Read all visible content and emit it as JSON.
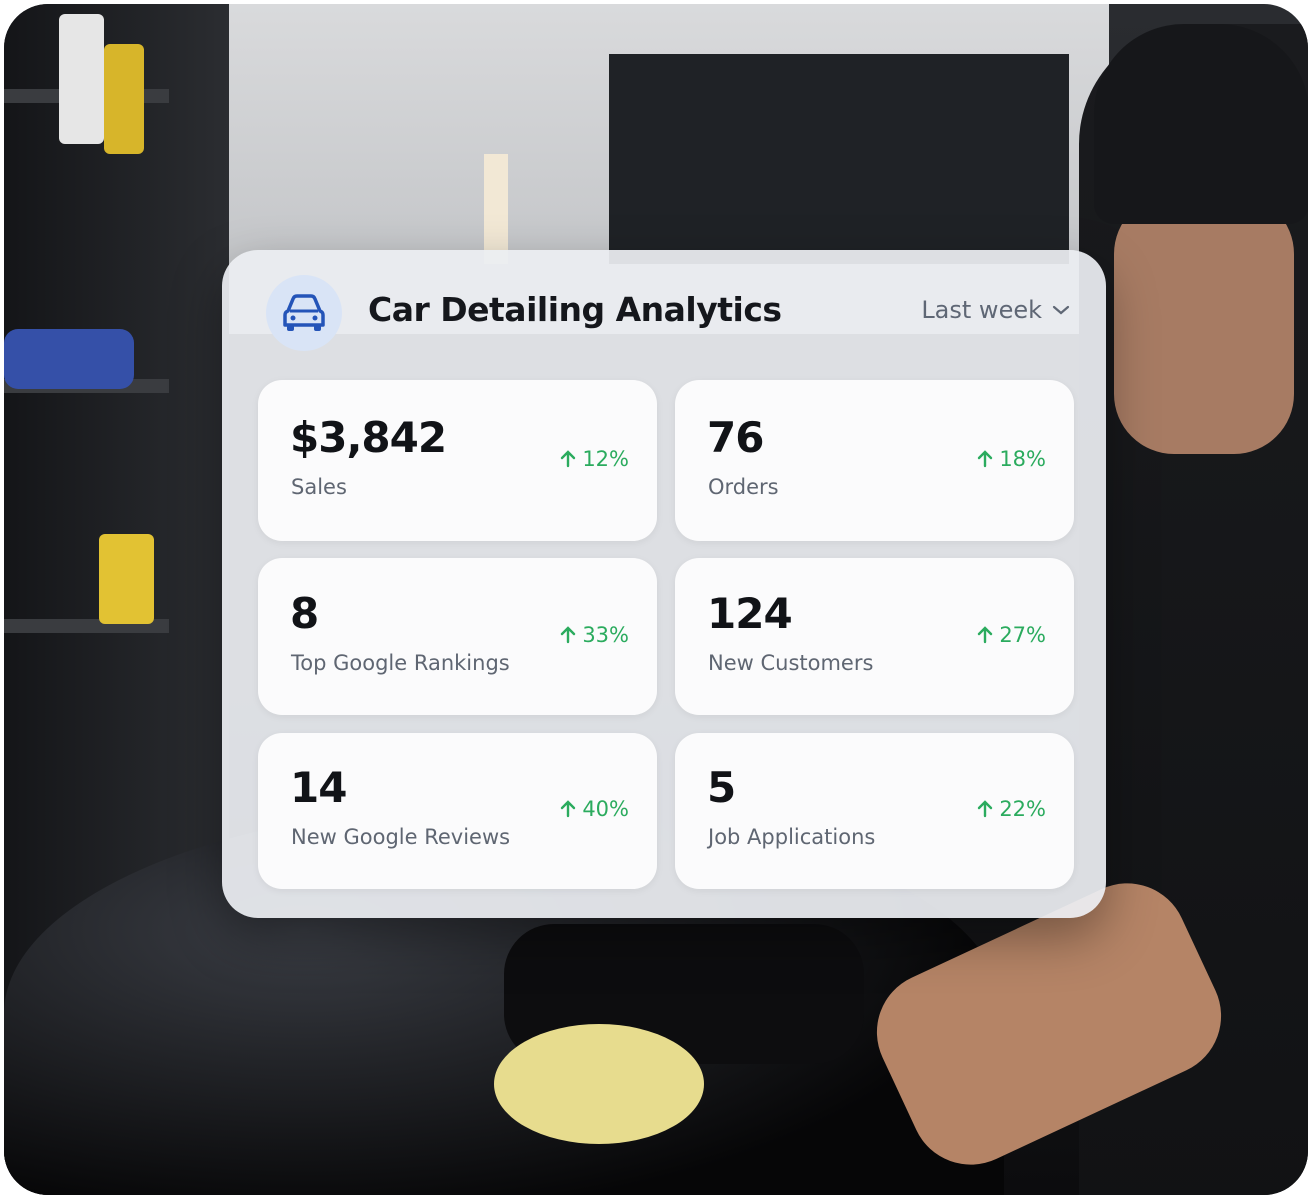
{
  "header": {
    "title": "Car Detailing Analytics",
    "period": "Last week"
  },
  "metrics": [
    {
      "value": "$3,842",
      "label": "Sales",
      "change": "12%"
    },
    {
      "value": "76",
      "label": "Orders",
      "change": "18%"
    },
    {
      "value": "8",
      "label": "Top Google Rankings",
      "change": "33%"
    },
    {
      "value": "124",
      "label": "New Customers",
      "change": "27%"
    },
    {
      "value": "14",
      "label": "New Google Reviews",
      "change": "40%"
    },
    {
      "value": "5",
      "label": "Job Applications",
      "change": "22%"
    }
  ]
}
